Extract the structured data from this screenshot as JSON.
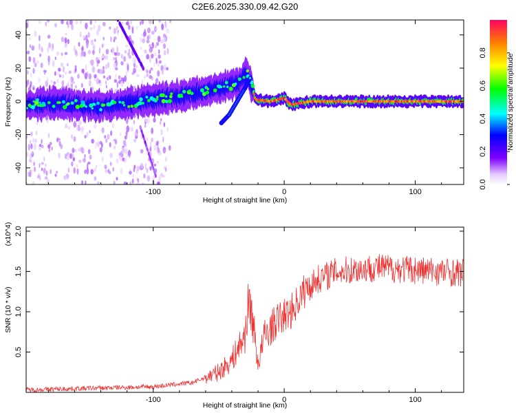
{
  "title": "C2E6.2025.330.09.42.G20",
  "chart_data": [
    {
      "type": "heatmap",
      "name": "spectrogram",
      "xlabel": "Height of straight line (km)",
      "ylabel": "Frequency (Hz)",
      "xlim": [
        -197,
        137
      ],
      "ylim": [
        -50,
        49
      ],
      "xticks": [
        -100,
        0,
        100
      ],
      "yticks": [
        40,
        20,
        0,
        -20,
        -40
      ],
      "colorbar": {
        "label": "Normalized spectral amplitude",
        "range": [
          0,
          1
        ],
        "ticks": [
          0.0,
          0.2,
          0.4,
          0.6,
          0.8
        ]
      },
      "ridge": [
        {
          "x": -195,
          "y": -2
        },
        {
          "x": -180,
          "y": -1
        },
        {
          "x": -160,
          "y": -2
        },
        {
          "x": -140,
          "y": -3
        },
        {
          "x": -120,
          "y": -1
        },
        {
          "x": -100,
          "y": 1
        },
        {
          "x": -80,
          "y": 3
        },
        {
          "x": -60,
          "y": 6
        },
        {
          "x": -45,
          "y": 9
        },
        {
          "x": -35,
          "y": 11
        },
        {
          "x": -28,
          "y": 17
        },
        {
          "x": -22,
          "y": 1
        },
        {
          "x": -10,
          "y": 0
        },
        {
          "x": 0,
          "y": 2
        },
        {
          "x": 5,
          "y": -2
        },
        {
          "x": 20,
          "y": 0
        },
        {
          "x": 40,
          "y": 0
        },
        {
          "x": 80,
          "y": 0
        },
        {
          "x": 120,
          "y": 0
        },
        {
          "x": 137,
          "y": 0
        }
      ],
      "branch": [
        {
          "x": -48,
          "y": -13
        },
        {
          "x": -42,
          "y": -8
        },
        {
          "x": -36,
          "y": 0
        },
        {
          "x": -30,
          "y": 8
        },
        {
          "x": -26,
          "y": 14
        }
      ]
    },
    {
      "type": "line",
      "name": "snr",
      "xlabel": "Height of straight line (km)",
      "ylabel": "SNR (10 * v/v)",
      "y_multiplier": "(x10^4)",
      "xlim": [
        -197,
        137
      ],
      "ylim": [
        0.0,
        2.05
      ],
      "xticks": [
        -100,
        0,
        100
      ],
      "yticks": [
        0.5,
        1.0,
        1.5,
        2.0
      ],
      "color": "#ee3333",
      "envelope": [
        {
          "x": -197,
          "y": 0.03
        },
        {
          "x": -150,
          "y": 0.05
        },
        {
          "x": -100,
          "y": 0.07
        },
        {
          "x": -70,
          "y": 0.12
        },
        {
          "x": -50,
          "y": 0.25
        },
        {
          "x": -40,
          "y": 0.4
        },
        {
          "x": -30,
          "y": 0.7
        },
        {
          "x": -27,
          "y": 1.15
        },
        {
          "x": -24,
          "y": 0.9
        },
        {
          "x": -20,
          "y": 0.35
        },
        {
          "x": -15,
          "y": 0.7
        },
        {
          "x": -5,
          "y": 0.9
        },
        {
          "x": 5,
          "y": 1.0
        },
        {
          "x": 15,
          "y": 1.25
        },
        {
          "x": 25,
          "y": 1.4
        },
        {
          "x": 40,
          "y": 1.5
        },
        {
          "x": 70,
          "y": 1.55
        },
        {
          "x": 100,
          "y": 1.52
        },
        {
          "x": 137,
          "y": 1.48
        }
      ]
    }
  ]
}
